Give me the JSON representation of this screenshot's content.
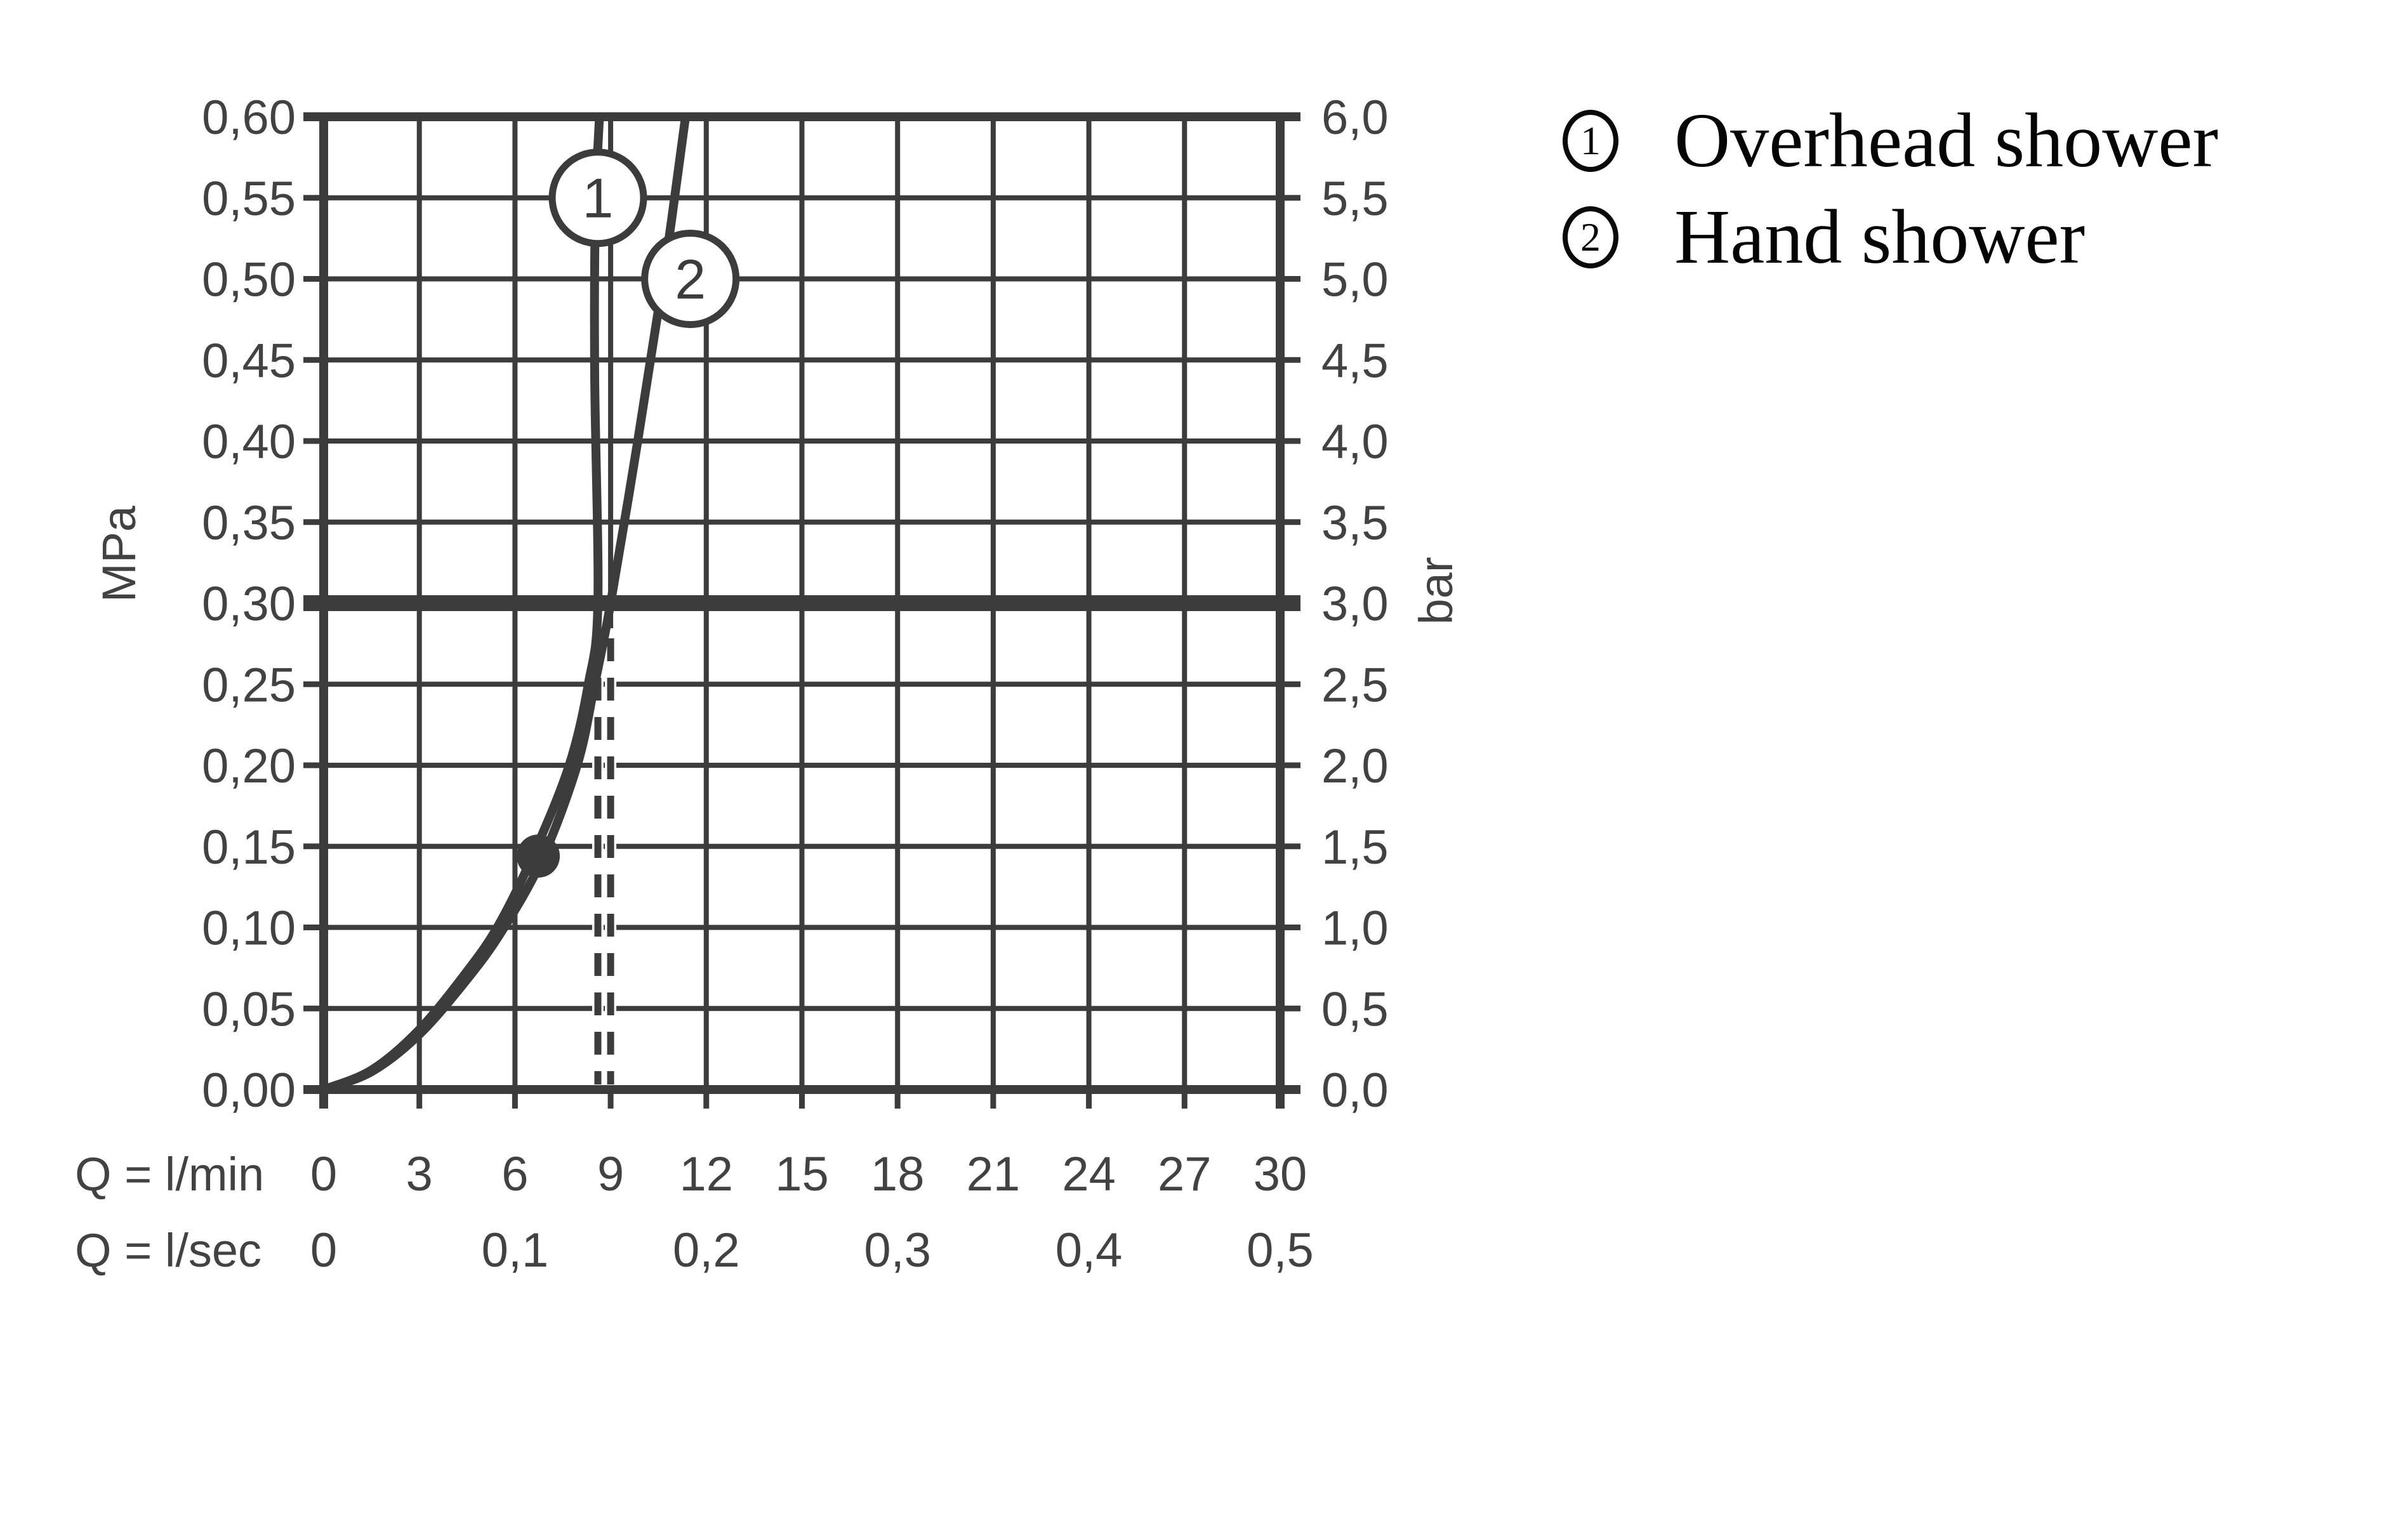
{
  "page": {
    "background": "#ffffff",
    "ink_color": "#3c3c3c",
    "legend_color": "#0a0a0a"
  },
  "legend": {
    "items": [
      {
        "marker": "1",
        "label": "Overhead shower"
      },
      {
        "marker": "2",
        "label": "Hand shower"
      }
    ]
  },
  "chart_data": {
    "type": "line",
    "title": "",
    "grid": true,
    "legend_position": "top-right",
    "x_axis": {
      "name_lmin": "Q = l/min",
      "name_lsec": "Q = l/sec",
      "range_lmin": [
        0,
        30
      ],
      "ticks_lmin": [
        0,
        3,
        6,
        9,
        12,
        15,
        18,
        21,
        24,
        27,
        30
      ],
      "ticks_lsec": [
        {
          "q": 0,
          "label": "0"
        },
        {
          "q": 6,
          "label": "0,1"
        },
        {
          "q": 12,
          "label": "0,2"
        },
        {
          "q": 18,
          "label": "0,3"
        },
        {
          "q": 24,
          "label": "0,4"
        },
        {
          "q": 30,
          "label": "0,5"
        }
      ]
    },
    "y_axis_left": {
      "unit": "MPa",
      "range": [
        0,
        0.6
      ],
      "step": 0.05,
      "tick_labels": [
        "0,00",
        "0,05",
        "0,10",
        "0,15",
        "0,20",
        "0,25",
        "0,30",
        "0,35",
        "0,40",
        "0,45",
        "0,50",
        "0,55",
        "0,60"
      ]
    },
    "y_axis_right": {
      "unit": "bar",
      "range": [
        0,
        6
      ],
      "step": 0.5,
      "tick_labels": [
        "0,0",
        "0,5",
        "1,0",
        "1,5",
        "2,0",
        "2,5",
        "3,0",
        "3,5",
        "4,0",
        "4,5",
        "5,0",
        "5,5",
        "6,0"
      ]
    },
    "reference_line": {
      "mpa": 0.3,
      "bar": 3.0
    },
    "flow_at_3bar_markers_lmin": [
      8.6,
      9.0
    ],
    "dot": {
      "q_lmin": 6.73,
      "p_mpa": 0.144
    },
    "series": [
      {
        "name": "Overhead shower",
        "marker": "1",
        "label_pos": {
          "q": 8.6,
          "p": 0.55
        },
        "points": [
          [
            0,
            0
          ],
          [
            1.5,
            0.012
          ],
          [
            3,
            0.037
          ],
          [
            4.5,
            0.073
          ],
          [
            5.5,
            0.102
          ],
          [
            6.6,
            0.146
          ],
          [
            7.7,
            0.2
          ],
          [
            8.3,
            0.25
          ],
          [
            8.6,
            0.3
          ],
          [
            8.5,
            0.44
          ],
          [
            8.52,
            0.54
          ],
          [
            8.65,
            0.6
          ]
        ]
      },
      {
        "name": "Hand shower",
        "marker": "2",
        "label_pos": {
          "q": 11.5,
          "p": 0.5
        },
        "points": [
          [
            0,
            0
          ],
          [
            1.5,
            0.011
          ],
          [
            3,
            0.034
          ],
          [
            4.5,
            0.068
          ],
          [
            5.6,
            0.098
          ],
          [
            6.85,
            0.142
          ],
          [
            7.95,
            0.2
          ],
          [
            8.5,
            0.25
          ],
          [
            9,
            0.3
          ],
          [
            9.85,
            0.4
          ],
          [
            10.65,
            0.5
          ],
          [
            11.35,
            0.6
          ]
        ]
      }
    ]
  }
}
